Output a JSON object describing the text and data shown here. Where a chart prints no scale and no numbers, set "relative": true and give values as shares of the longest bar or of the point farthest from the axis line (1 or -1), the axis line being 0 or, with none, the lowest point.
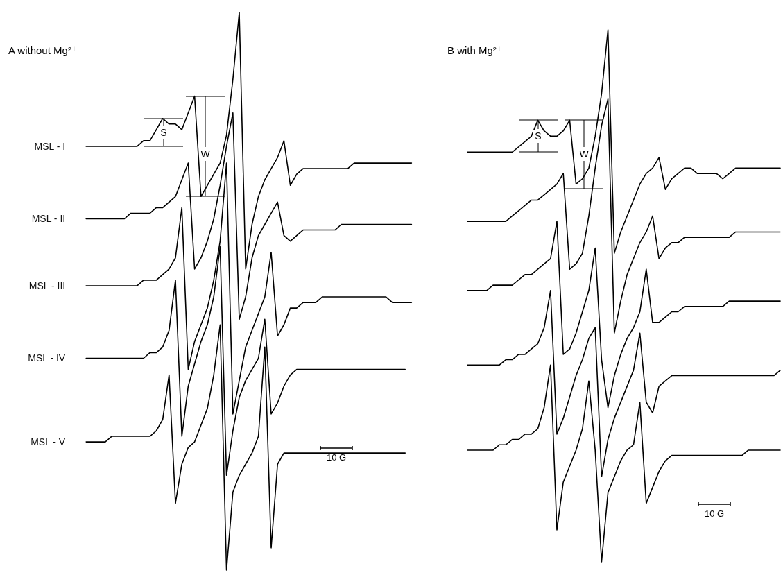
{
  "chart_data": [
    {
      "type": "line",
      "title": "A without Mg²⁺",
      "relative": true,
      "annotations": [
        "10 G",
        "S",
        "W"
      ],
      "categories": [
        null,
        null,
        null,
        null,
        null,
        null,
        null,
        null,
        null,
        null,
        null,
        null,
        null,
        null,
        null,
        null,
        null,
        null,
        null,
        null,
        null,
        null,
        null,
        null,
        null,
        null,
        null,
        null,
        null,
        null,
        null,
        null,
        null,
        null,
        null,
        null,
        null,
        null,
        null,
        null,
        null,
        null,
        null,
        null,
        null,
        null,
        null,
        null,
        null,
        null,
        null,
        null,
        null
      ],
      "series": [
        {
          "name": "MSL - I",
          "color": "#000000",
          "values": [
            null,
            0.76,
            0.76,
            0.76,
            0.76,
            0.76,
            0.76,
            0.76,
            0.76,
            0.76,
            0.77,
            0.77,
            0.79,
            0.81,
            0.8,
            0.8,
            0.79,
            0.82,
            0.85,
            0.67,
            0.69,
            0.71,
            0.73,
            0.78,
            0.88,
            1.0,
            0.54,
            0.62,
            0.67,
            0.7,
            0.72,
            0.74,
            0.77,
            0.69,
            0.71,
            0.72,
            0.72,
            0.72,
            0.72,
            0.72,
            0.72,
            0.72,
            0.72,
            0.73,
            0.73,
            0.73,
            0.73,
            0.73,
            0.73,
            0.73,
            0.73,
            0.73,
            0.73
          ]
        },
        {
          "name": "MSL - II",
          "color": "#000000",
          "values": [
            null,
            0.63,
            0.63,
            0.63,
            0.63,
            0.63,
            0.63,
            0.63,
            0.64,
            0.64,
            0.64,
            0.64,
            0.65,
            0.65,
            0.66,
            0.67,
            0.7,
            0.73,
            0.54,
            0.56,
            0.59,
            0.63,
            0.69,
            0.76,
            0.82,
            0.45,
            0.49,
            0.56,
            0.6,
            0.62,
            0.64,
            0.66,
            0.6,
            0.59,
            0.6,
            0.61,
            0.61,
            0.61,
            0.61,
            0.61,
            0.61,
            0.62,
            0.62,
            0.62,
            0.62,
            0.62,
            0.62,
            0.62,
            0.62,
            0.62,
            0.62,
            0.62,
            0.62
          ]
        },
        {
          "name": "MSL - III",
          "color": "#000000",
          "values": [
            null,
            0.51,
            0.51,
            0.51,
            0.51,
            0.51,
            0.51,
            0.51,
            0.51,
            0.51,
            0.52,
            0.52,
            0.52,
            0.53,
            0.54,
            0.56,
            0.65,
            0.36,
            0.41,
            0.44,
            0.47,
            0.52,
            0.59,
            0.73,
            0.28,
            0.34,
            0.4,
            0.43,
            0.46,
            0.49,
            0.57,
            0.42,
            0.44,
            0.47,
            0.47,
            0.48,
            0.48,
            0.48,
            0.49,
            0.49,
            0.49,
            0.49,
            0.49,
            0.49,
            0.49,
            0.49,
            0.49,
            0.49,
            0.49,
            0.48,
            0.48,
            0.48,
            0.48
          ]
        },
        {
          "name": "MSL - IV",
          "color": "#000000",
          "values": [
            null,
            0.38,
            0.38,
            0.38,
            0.38,
            0.38,
            0.38,
            0.38,
            0.38,
            0.38,
            0.38,
            0.39,
            0.39,
            0.4,
            0.43,
            0.52,
            0.24,
            0.33,
            0.37,
            0.41,
            0.44,
            0.49,
            0.58,
            0.17,
            0.25,
            0.31,
            0.34,
            0.36,
            0.38,
            0.45,
            0.28,
            0.3,
            0.33,
            0.35,
            0.36,
            0.36,
            0.36,
            0.36,
            0.36,
            0.36,
            0.36,
            0.36,
            0.36,
            0.36,
            0.36,
            0.36,
            0.36,
            0.36,
            0.36,
            0.36,
            0.36,
            0.36,
            null
          ]
        },
        {
          "name": "MSL - V",
          "color": "#000000",
          "values": [
            null,
            0.23,
            0.23,
            0.23,
            0.23,
            0.24,
            0.24,
            0.24,
            0.24,
            0.24,
            0.24,
            0.24,
            0.25,
            0.27,
            0.35,
            0.12,
            0.19,
            0.22,
            0.23,
            0.26,
            0.29,
            0.35,
            0.44,
            0.0,
            0.14,
            0.17,
            0.19,
            0.21,
            0.24,
            0.4,
            0.04,
            0.19,
            0.21,
            0.21,
            0.21,
            0.21,
            0.21,
            0.21,
            0.21,
            0.21,
            0.21,
            0.21,
            0.21,
            0.21,
            0.21,
            0.21,
            0.21,
            0.21,
            0.21,
            0.21,
            0.21,
            0.21,
            null
          ]
        }
      ]
    },
    {
      "type": "line",
      "title": "B with Mg²⁺",
      "relative": true,
      "annotations": [
        "10 G",
        "S",
        "W"
      ],
      "categories": [
        null,
        null,
        null,
        null,
        null,
        null,
        null,
        null,
        null,
        null,
        null,
        null,
        null,
        null,
        null,
        null,
        null,
        null,
        null,
        null,
        null,
        null,
        null,
        null,
        null,
        null,
        null,
        null,
        null,
        null,
        null,
        null,
        null,
        null,
        null,
        null,
        null,
        null,
        null,
        null,
        null,
        null,
        null,
        null,
        null,
        null,
        null,
        null,
        null,
        null,
        null
      ],
      "series": [
        {
          "color": "#000000",
          "values": [
            null,
            0.77,
            0.77,
            0.77,
            0.77,
            0.77,
            0.77,
            0.77,
            0.77,
            0.78,
            0.79,
            0.8,
            0.83,
            0.81,
            0.8,
            0.8,
            0.81,
            0.83,
            0.71,
            0.72,
            0.74,
            0.8,
            0.88,
            1.0,
            0.58,
            0.62,
            0.65,
            0.68,
            0.71,
            0.73,
            0.74,
            0.76,
            0.7,
            0.72,
            0.73,
            0.74,
            0.74,
            0.73,
            0.73,
            0.73,
            0.73,
            0.72,
            0.73,
            0.74,
            0.74,
            0.74,
            0.74,
            0.74,
            0.74,
            0.74,
            0.74
          ]
        },
        {
          "color": "#000000",
          "values": [
            null,
            0.64,
            0.64,
            0.64,
            0.64,
            0.64,
            0.64,
            0.64,
            0.65,
            0.66,
            0.67,
            0.68,
            0.68,
            0.69,
            0.7,
            0.71,
            0.73,
            0.55,
            0.56,
            0.58,
            0.65,
            0.74,
            0.82,
            0.87,
            0.43,
            0.49,
            0.54,
            0.57,
            0.6,
            0.62,
            0.65,
            0.57,
            0.59,
            0.6,
            0.6,
            0.61,
            0.61,
            0.61,
            0.61,
            0.61,
            0.61,
            0.61,
            0.61,
            0.62,
            0.62,
            0.62,
            0.62,
            0.62,
            0.62,
            0.62,
            0.62
          ]
        },
        {
          "color": "#000000",
          "values": [
            null,
            0.51,
            0.51,
            0.51,
            0.51,
            0.52,
            0.52,
            0.52,
            0.52,
            0.53,
            0.54,
            0.54,
            0.55,
            0.56,
            0.57,
            0.64,
            0.39,
            0.4,
            0.43,
            0.47,
            0.51,
            0.59,
            0.38,
            0.29,
            0.35,
            0.39,
            0.42,
            0.44,
            0.47,
            0.55,
            0.45,
            0.45,
            0.46,
            0.47,
            0.47,
            0.48,
            0.48,
            0.48,
            0.48,
            0.48,
            0.48,
            0.48,
            0.49,
            0.49,
            0.49,
            0.49,
            0.49,
            0.49,
            0.49,
            0.49,
            0.49
          ]
        },
        {
          "color": "#000000",
          "values": [
            null,
            0.37,
            0.37,
            0.37,
            0.37,
            0.37,
            0.37,
            0.38,
            0.38,
            0.39,
            0.39,
            0.4,
            0.41,
            0.44,
            0.51,
            0.24,
            0.27,
            0.31,
            0.35,
            0.38,
            0.42,
            0.44,
            0.16,
            0.23,
            0.27,
            0.3,
            0.33,
            0.36,
            0.43,
            0.3,
            0.28,
            0.33,
            0.34,
            0.35,
            0.35,
            0.35,
            0.35,
            0.35,
            0.35,
            0.35,
            0.35,
            0.35,
            0.35,
            0.35,
            0.35,
            0.35,
            0.35,
            0.35,
            0.35,
            0.35,
            0.36
          ]
        },
        {
          "color": "#000000",
          "values": [
            null,
            0.21,
            0.21,
            0.21,
            0.21,
            0.21,
            0.22,
            0.22,
            0.23,
            0.23,
            0.24,
            0.24,
            0.25,
            0.29,
            0.37,
            0.06,
            0.15,
            0.18,
            0.21,
            0.25,
            0.34,
            0.21,
            0.0,
            0.13,
            0.16,
            0.19,
            0.21,
            0.22,
            0.3,
            0.11,
            0.14,
            0.17,
            0.19,
            0.2,
            0.2,
            0.2,
            0.2,
            0.2,
            0.2,
            0.2,
            0.2,
            0.2,
            0.2,
            0.2,
            0.2,
            0.21,
            0.21,
            0.21,
            0.21,
            0.21,
            0.21
          ]
        }
      ]
    }
  ]
}
